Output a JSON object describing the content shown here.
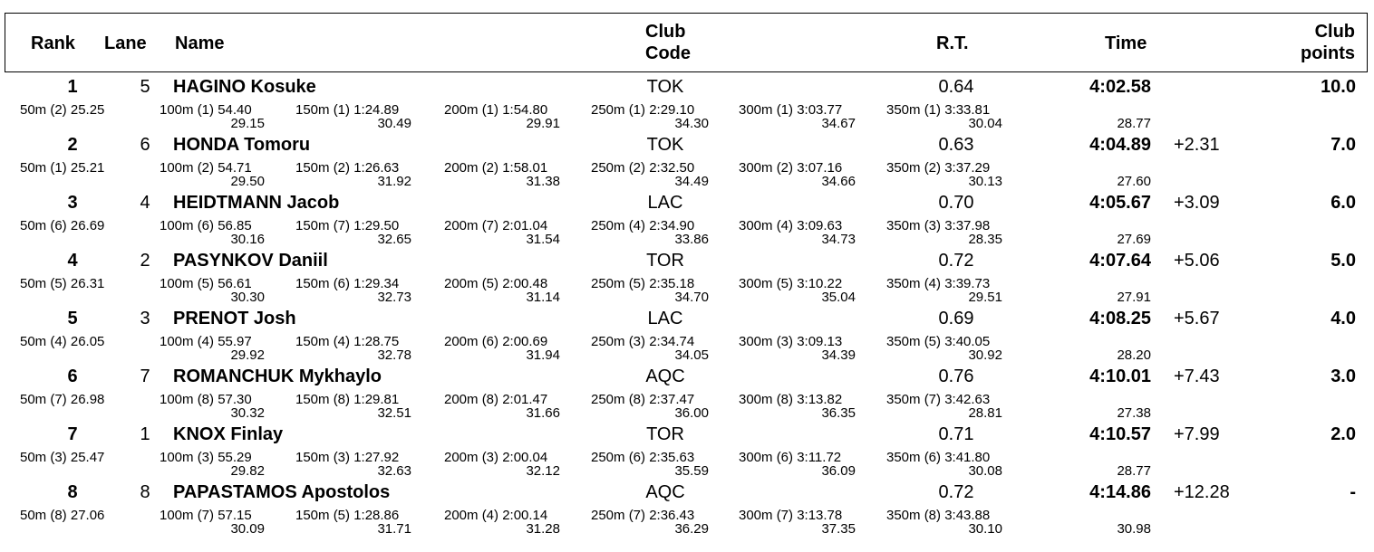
{
  "headers": {
    "rank": "Rank",
    "lane": "Lane",
    "name": "Name",
    "club_code": [
      "Club",
      "Code"
    ],
    "rt": "R.T.",
    "time": "Time",
    "club_points": [
      "Club",
      "points"
    ]
  },
  "results": [
    {
      "rank": "1",
      "lane": "5",
      "name": "HAGINO Kosuke",
      "club": "TOK",
      "rt": "0.64",
      "time": "4:02.58",
      "behind": "",
      "points": "10.0",
      "splits": [
        {
          "label": "50m (2) 25.25",
          "lap": ""
        },
        {
          "label": "100m (1) 54.40",
          "lap": "29.15"
        },
        {
          "label": "150m (1) 1:24.89",
          "lap": "30.49"
        },
        {
          "label": "200m (1) 1:54.80",
          "lap": "29.91"
        },
        {
          "label": "250m (1) 2:29.10",
          "lap": "34.30"
        },
        {
          "label": "300m (1) 3:03.77",
          "lap": "34.67"
        },
        {
          "label": "350m (1) 3:33.81",
          "lap": "30.04"
        }
      ],
      "final_lap": "28.77"
    },
    {
      "rank": "2",
      "lane": "6",
      "name": "HONDA Tomoru",
      "club": "TOK",
      "rt": "0.63",
      "time": "4:04.89",
      "behind": "+2.31",
      "points": "7.0",
      "splits": [
        {
          "label": "50m (1) 25.21",
          "lap": ""
        },
        {
          "label": "100m (2) 54.71",
          "lap": "29.50"
        },
        {
          "label": "150m (2) 1:26.63",
          "lap": "31.92"
        },
        {
          "label": "200m (2) 1:58.01",
          "lap": "31.38"
        },
        {
          "label": "250m (2) 2:32.50",
          "lap": "34.49"
        },
        {
          "label": "300m (2) 3:07.16",
          "lap": "34.66"
        },
        {
          "label": "350m (2) 3:37.29",
          "lap": "30.13"
        }
      ],
      "final_lap": "27.60"
    },
    {
      "rank": "3",
      "lane": "4",
      "name": "HEIDTMANN Jacob",
      "club": "LAC",
      "rt": "0.70",
      "time": "4:05.67",
      "behind": "+3.09",
      "points": "6.0",
      "splits": [
        {
          "label": "50m (6) 26.69",
          "lap": ""
        },
        {
          "label": "100m (6) 56.85",
          "lap": "30.16"
        },
        {
          "label": "150m (7) 1:29.50",
          "lap": "32.65"
        },
        {
          "label": "200m (7) 2:01.04",
          "lap": "31.54"
        },
        {
          "label": "250m (4) 2:34.90",
          "lap": "33.86"
        },
        {
          "label": "300m (4) 3:09.63",
          "lap": "34.73"
        },
        {
          "label": "350m (3) 3:37.98",
          "lap": "28.35"
        }
      ],
      "final_lap": "27.69"
    },
    {
      "rank": "4",
      "lane": "2",
      "name": "PASYNKOV Daniil",
      "club": "TOR",
      "rt": "0.72",
      "time": "4:07.64",
      "behind": "+5.06",
      "points": "5.0",
      "splits": [
        {
          "label": "50m (5) 26.31",
          "lap": ""
        },
        {
          "label": "100m (5) 56.61",
          "lap": "30.30"
        },
        {
          "label": "150m (6) 1:29.34",
          "lap": "32.73"
        },
        {
          "label": "200m (5) 2:00.48",
          "lap": "31.14"
        },
        {
          "label": "250m (5) 2:35.18",
          "lap": "34.70"
        },
        {
          "label": "300m (5) 3:10.22",
          "lap": "35.04"
        },
        {
          "label": "350m (4) 3:39.73",
          "lap": "29.51"
        }
      ],
      "final_lap": "27.91"
    },
    {
      "rank": "5",
      "lane": "3",
      "name": "PRENOT Josh",
      "club": "LAC",
      "rt": "0.69",
      "time": "4:08.25",
      "behind": "+5.67",
      "points": "4.0",
      "splits": [
        {
          "label": "50m (4) 26.05",
          "lap": ""
        },
        {
          "label": "100m (4) 55.97",
          "lap": "29.92"
        },
        {
          "label": "150m (4) 1:28.75",
          "lap": "32.78"
        },
        {
          "label": "200m (6) 2:00.69",
          "lap": "31.94"
        },
        {
          "label": "250m (3) 2:34.74",
          "lap": "34.05"
        },
        {
          "label": "300m (3) 3:09.13",
          "lap": "34.39"
        },
        {
          "label": "350m (5) 3:40.05",
          "lap": "30.92"
        }
      ],
      "final_lap": "28.20"
    },
    {
      "rank": "6",
      "lane": "7",
      "name": "ROMANCHUK Mykhaylo",
      "club": "AQC",
      "rt": "0.76",
      "time": "4:10.01",
      "behind": "+7.43",
      "points": "3.0",
      "splits": [
        {
          "label": "50m (7) 26.98",
          "lap": ""
        },
        {
          "label": "100m (8) 57.30",
          "lap": "30.32"
        },
        {
          "label": "150m (8) 1:29.81",
          "lap": "32.51"
        },
        {
          "label": "200m (8) 2:01.47",
          "lap": "31.66"
        },
        {
          "label": "250m (8) 2:37.47",
          "lap": "36.00"
        },
        {
          "label": "300m (8) 3:13.82",
          "lap": "36.35"
        },
        {
          "label": "350m (7) 3:42.63",
          "lap": "28.81"
        }
      ],
      "final_lap": "27.38"
    },
    {
      "rank": "7",
      "lane": "1",
      "name": "KNOX Finlay",
      "club": "TOR",
      "rt": "0.71",
      "time": "4:10.57",
      "behind": "+7.99",
      "points": "2.0",
      "splits": [
        {
          "label": "50m (3) 25.47",
          "lap": ""
        },
        {
          "label": "100m (3) 55.29",
          "lap": "29.82"
        },
        {
          "label": "150m (3) 1:27.92",
          "lap": "32.63"
        },
        {
          "label": "200m (3) 2:00.04",
          "lap": "32.12"
        },
        {
          "label": "250m (6) 2:35.63",
          "lap": "35.59"
        },
        {
          "label": "300m (6) 3:11.72",
          "lap": "36.09"
        },
        {
          "label": "350m (6) 3:41.80",
          "lap": "30.08"
        }
      ],
      "final_lap": "28.77"
    },
    {
      "rank": "8",
      "lane": "8",
      "name": "PAPASTAMOS Apostolos",
      "club": "AQC",
      "rt": "0.72",
      "time": "4:14.86",
      "behind": "+12.28",
      "points": "-",
      "splits": [
        {
          "label": "50m (8) 27.06",
          "lap": ""
        },
        {
          "label": "100m (7) 57.15",
          "lap": "30.09"
        },
        {
          "label": "150m (5) 1:28.86",
          "lap": "31.71"
        },
        {
          "label": "200m (4) 2:00.14",
          "lap": "31.28"
        },
        {
          "label": "250m (7) 2:36.43",
          "lap": "36.29"
        },
        {
          "label": "300m (7) 3:13.78",
          "lap": "37.35"
        },
        {
          "label": "350m (8) 3:43.88",
          "lap": "30.10"
        }
      ],
      "final_lap": "30.98"
    }
  ]
}
